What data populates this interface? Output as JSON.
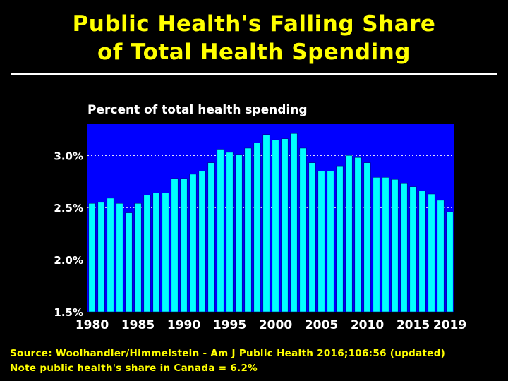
{
  "title_line1": "Public Health's Falling Share",
  "title_line2": "of Total Health Spending",
  "source_line1": "Source: Woolhandler/Himmelstein - Am J Public Health 2016;106:56 (updated)",
  "source_line2": "Note public health's share in Canada = 6.2%",
  "colors": {
    "background": "#000000",
    "title": "#ffff00",
    "plot_area": "#0000ff",
    "bar": "#00ffff",
    "text": "#ffffff"
  },
  "chart_data": {
    "type": "bar",
    "title": "Percent of total health spending",
    "ylim": [
      1.5,
      3.3
    ],
    "yticks": [
      1.5,
      2.0,
      2.5,
      3.0
    ],
    "ytick_labels": [
      "1.5%",
      "2.0%",
      "2.5%",
      "3.0%"
    ],
    "x_tick_years": [
      1980,
      1985,
      1990,
      1995,
      2000,
      2005,
      2010,
      2015,
      2019
    ],
    "x_tick_labels": [
      "1980",
      "1985",
      "1990",
      "1995",
      "2000",
      "2005",
      "2010",
      "2015",
      "2019"
    ],
    "grid": "horizontal dotted at 2.5% and 3.0%",
    "categories": [
      1980,
      1981,
      1982,
      1983,
      1984,
      1985,
      1986,
      1987,
      1988,
      1989,
      1990,
      1991,
      1992,
      1993,
      1994,
      1995,
      1996,
      1997,
      1998,
      1999,
      2000,
      2001,
      2002,
      2003,
      2004,
      2005,
      2006,
      2007,
      2008,
      2009,
      2010,
      2011,
      2012,
      2013,
      2014,
      2015,
      2016,
      2017,
      2018,
      2019
    ],
    "values": [
      2.54,
      2.55,
      2.59,
      2.54,
      2.45,
      2.54,
      2.62,
      2.64,
      2.64,
      2.78,
      2.78,
      2.82,
      2.85,
      2.93,
      3.06,
      3.03,
      3.01,
      3.07,
      3.12,
      3.2,
      3.15,
      3.16,
      3.21,
      3.07,
      2.93,
      2.85,
      2.85,
      2.9,
      3.0,
      2.98,
      2.93,
      2.79,
      2.79,
      2.77,
      2.73,
      2.7,
      2.66,
      2.63,
      2.57,
      2.46
    ]
  }
}
